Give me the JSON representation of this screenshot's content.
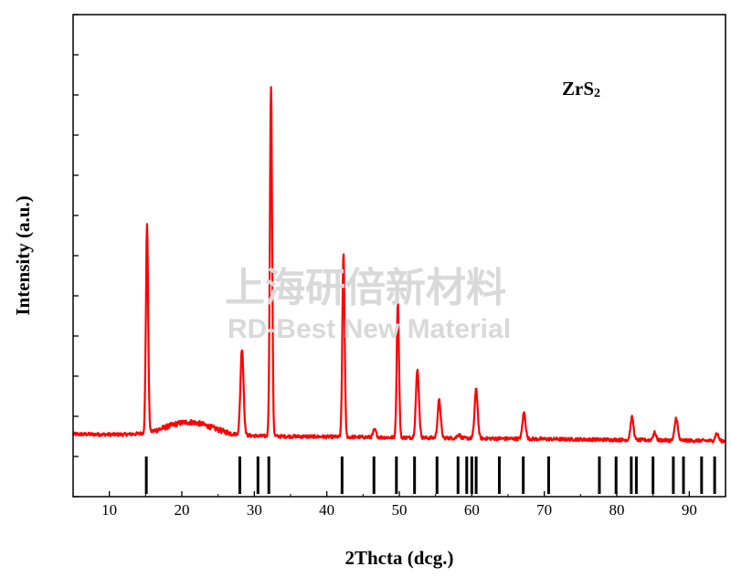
{
  "chart_data": {
    "type": "line",
    "title": "",
    "xlabel": "2Thcta (dcg.)",
    "ylabel": "Intensity (a.u.)",
    "annotation": "ZrS",
    "annotation_subscript": "2",
    "xlim": [
      5,
      95
    ],
    "x_ticks": [
      10,
      20,
      30,
      40,
      50,
      60,
      70,
      80,
      90
    ],
    "y_ticks_count": 13,
    "series": [
      {
        "color": "#ff0000",
        "baseline": 0.04,
        "background_hump": {
          "center": 21,
          "width": 4.5,
          "height": 0.035
        },
        "peaks": [
          {
            "x": 15.2,
            "y": 0.59
          },
          {
            "x": 28.3,
            "y": 0.27
          },
          {
            "x": 32.3,
            "y": 0.97
          },
          {
            "x": 42.3,
            "y": 0.53
          },
          {
            "x": 46.6,
            "y": 0.06
          },
          {
            "x": 49.8,
            "y": 0.4
          },
          {
            "x": 52.5,
            "y": 0.22
          },
          {
            "x": 55.5,
            "y": 0.14
          },
          {
            "x": 58.2,
            "y": 0.05
          },
          {
            "x": 60.6,
            "y": 0.17
          },
          {
            "x": 64.0,
            "y": 0.04
          },
          {
            "x": 67.2,
            "y": 0.11
          },
          {
            "x": 70.8,
            "y": 0.04
          },
          {
            "x": 78.0,
            "y": 0.04
          },
          {
            "x": 82.1,
            "y": 0.1
          },
          {
            "x": 85.2,
            "y": 0.06
          },
          {
            "x": 88.2,
            "y": 0.1
          },
          {
            "x": 93.8,
            "y": 0.06
          }
        ]
      }
    ],
    "reference_lines": [
      15.1,
      28.0,
      30.5,
      32.0,
      42.1,
      46.5,
      49.6,
      52.1,
      55.2,
      58.1,
      59.3,
      60.0,
      60.6,
      63.8,
      67.1,
      70.6,
      77.6,
      79.9,
      82.0,
      82.7,
      85.0,
      87.8,
      89.2,
      91.7,
      93.5
    ]
  },
  "watermark": {
    "line1": "上海研倍新材料",
    "line2": "RD-Best New Material"
  }
}
